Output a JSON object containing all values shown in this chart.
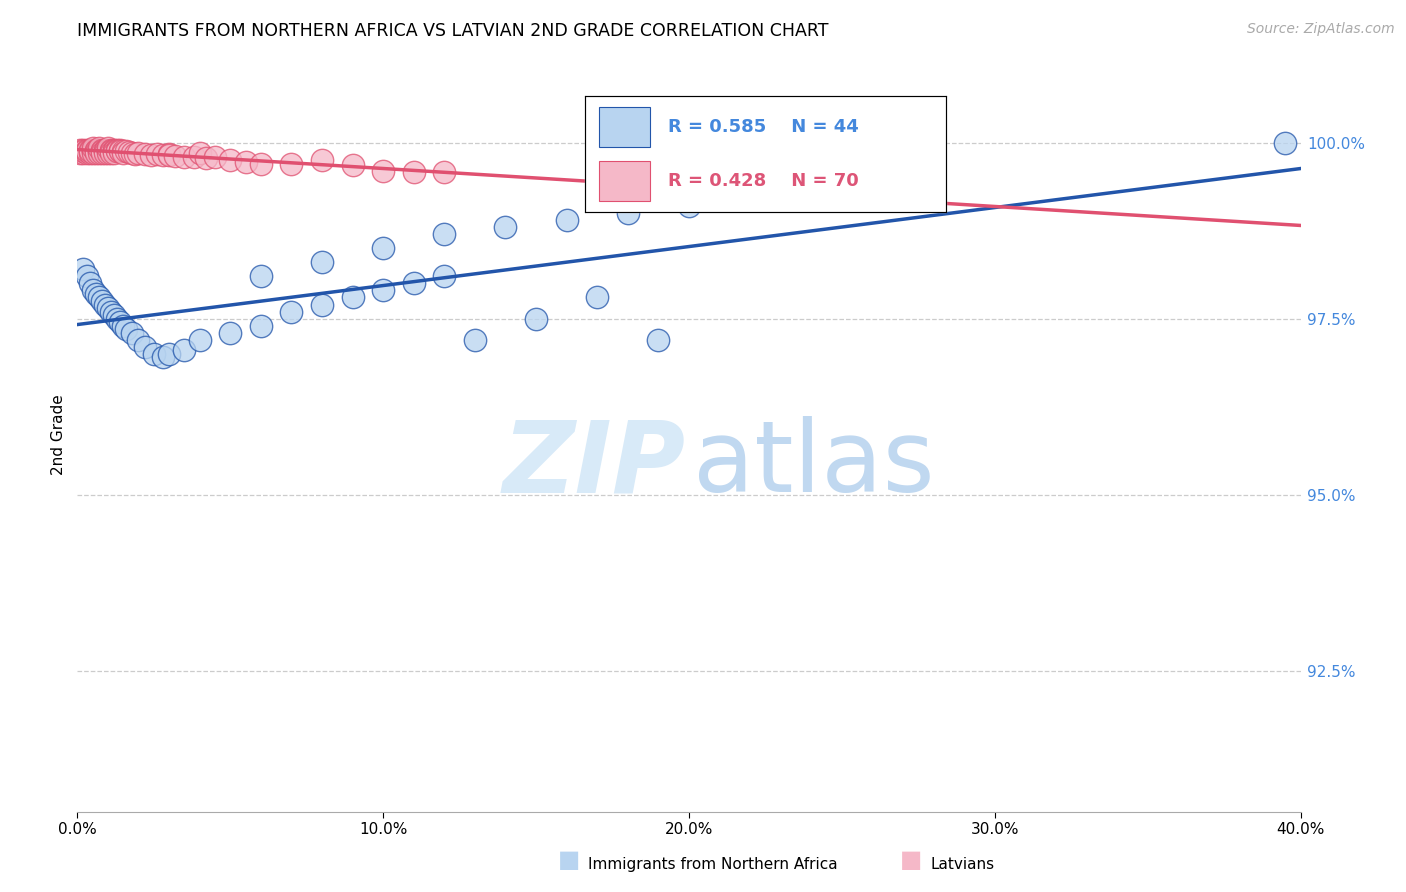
{
  "title": "IMMIGRANTS FROM NORTHERN AFRICA VS LATVIAN 2ND GRADE CORRELATION CHART",
  "source": "Source: ZipAtlas.com",
  "ylabel": "2nd Grade",
  "ylabel_right_values": [
    1.0,
    0.975,
    0.95,
    0.925
  ],
  "xmin": 0.0,
  "xmax": 0.4,
  "ymin": 0.905,
  "ymax": 1.012,
  "legend_blue_r": "R = 0.585",
  "legend_blue_n": "N = 44",
  "legend_pink_r": "R = 0.428",
  "legend_pink_n": "N = 70",
  "blue_color": "#b8d4f0",
  "pink_color": "#f5b8c8",
  "blue_line_color": "#2255aa",
  "pink_line_color": "#e05070",
  "legend_blue_text_color": "#4488dd",
  "legend_pink_text_color": "#dd5577",
  "blue_scatter_x": [
    0.002,
    0.003,
    0.004,
    0.005,
    0.006,
    0.007,
    0.008,
    0.009,
    0.01,
    0.011,
    0.012,
    0.013,
    0.014,
    0.015,
    0.016,
    0.018,
    0.02,
    0.022,
    0.025,
    0.028,
    0.03,
    0.035,
    0.04,
    0.05,
    0.06,
    0.07,
    0.08,
    0.09,
    0.1,
    0.11,
    0.12,
    0.13,
    0.15,
    0.17,
    0.19,
    0.06,
    0.08,
    0.1,
    0.12,
    0.14,
    0.16,
    0.18,
    0.2,
    0.395
  ],
  "blue_scatter_y": [
    0.982,
    0.981,
    0.98,
    0.979,
    0.9785,
    0.978,
    0.9775,
    0.977,
    0.9765,
    0.976,
    0.9755,
    0.975,
    0.9745,
    0.974,
    0.9735,
    0.973,
    0.972,
    0.971,
    0.97,
    0.9695,
    0.97,
    0.9705,
    0.972,
    0.973,
    0.974,
    0.976,
    0.977,
    0.978,
    0.979,
    0.98,
    0.981,
    0.972,
    0.975,
    0.978,
    0.972,
    0.981,
    0.983,
    0.985,
    0.987,
    0.988,
    0.989,
    0.99,
    0.991,
    1.0
  ],
  "pink_scatter_x": [
    0.001,
    0.001,
    0.002,
    0.002,
    0.002,
    0.003,
    0.003,
    0.003,
    0.004,
    0.004,
    0.004,
    0.005,
    0.005,
    0.005,
    0.005,
    0.006,
    0.006,
    0.006,
    0.007,
    0.007,
    0.007,
    0.007,
    0.008,
    0.008,
    0.008,
    0.009,
    0.009,
    0.009,
    0.01,
    0.01,
    0.01,
    0.01,
    0.011,
    0.011,
    0.011,
    0.012,
    0.012,
    0.012,
    0.013,
    0.013,
    0.014,
    0.014,
    0.015,
    0.015,
    0.016,
    0.017,
    0.018,
    0.019,
    0.02,
    0.022,
    0.024,
    0.026,
    0.028,
    0.03,
    0.03,
    0.032,
    0.035,
    0.038,
    0.04,
    0.042,
    0.045,
    0.05,
    0.055,
    0.06,
    0.07,
    0.08,
    0.09,
    0.1,
    0.11,
    0.12
  ],
  "pink_scatter_y": [
    0.999,
    0.9985,
    0.999,
    0.9985,
    0.9988,
    0.999,
    0.9985,
    0.9988,
    0.999,
    0.9985,
    0.9988,
    0.999,
    0.9988,
    0.9985,
    0.9992,
    0.999,
    0.9988,
    0.9985,
    0.999,
    0.9988,
    0.9985,
    0.9992,
    0.999,
    0.9988,
    0.9985,
    0.999,
    0.9988,
    0.9985,
    0.999,
    0.9988,
    0.9985,
    0.9992,
    0.999,
    0.9988,
    0.9985,
    0.999,
    0.9988,
    0.9985,
    0.999,
    0.9988,
    0.999,
    0.9988,
    0.9988,
    0.9985,
    0.9988,
    0.9986,
    0.9985,
    0.9984,
    0.9985,
    0.9983,
    0.9982,
    0.9983,
    0.9982,
    0.9984,
    0.9982,
    0.9981,
    0.998,
    0.9979,
    0.9985,
    0.9978,
    0.9979,
    0.9975,
    0.9972,
    0.997,
    0.997,
    0.9975,
    0.9968,
    0.996,
    0.9958,
    0.9958
  ]
}
